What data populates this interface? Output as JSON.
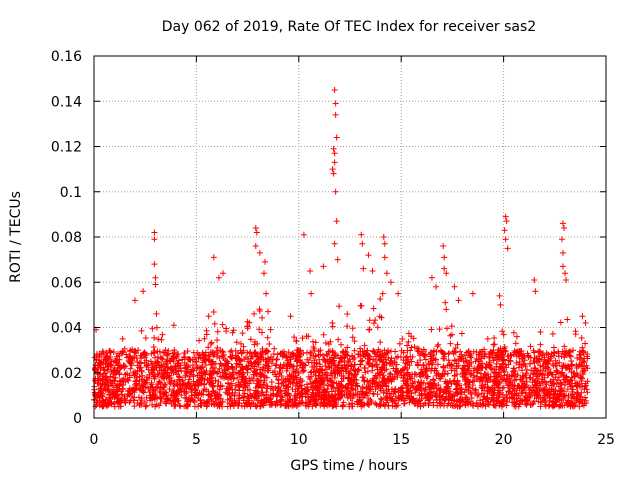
{
  "chart_data": {
    "type": "scatter",
    "title": "Day 062 of 2019, Rate Of TEC Index for receiver sas2",
    "xlabel": "GPS time / hours",
    "ylabel": "ROTI / TECUs",
    "xlim": [
      0,
      25
    ],
    "ylim": [
      0,
      0.16
    ],
    "xticks": [
      0,
      5,
      10,
      15,
      20,
      25
    ],
    "xtick_labels": [
      "0",
      "5",
      "10",
      "15",
      "20",
      "25"
    ],
    "yticks": [
      0,
      0.02,
      0.04,
      0.06,
      0.08,
      0.1,
      0.12,
      0.14,
      0.16
    ],
    "ytick_labels": [
      "0",
      "0.02",
      "0.04",
      "0.06",
      "0.08",
      "0.1",
      "0.12",
      "0.14",
      "0.16"
    ],
    "grid": true,
    "marker": "+",
    "marker_color": "#ff0000",
    "time_span_hours": [
      0,
      24.1
    ],
    "background_band": {
      "low": 0.005,
      "high": 0.03
    },
    "series": [
      {
        "name": "sas2",
        "notable_points": [
          {
            "x": 0.1,
            "y": 0.039
          },
          {
            "x": 1.4,
            "y": 0.035
          },
          {
            "x": 2.0,
            "y": 0.052
          },
          {
            "x": 2.4,
            "y": 0.056
          },
          {
            "x": 2.95,
            "y": 0.082
          },
          {
            "x": 2.95,
            "y": 0.079
          },
          {
            "x": 2.95,
            "y": 0.068
          },
          {
            "x": 3.0,
            "y": 0.062
          },
          {
            "x": 3.0,
            "y": 0.059
          },
          {
            "x": 3.05,
            "y": 0.046
          },
          {
            "x": 3.9,
            "y": 0.041
          },
          {
            "x": 5.6,
            "y": 0.045
          },
          {
            "x": 5.85,
            "y": 0.071
          },
          {
            "x": 6.1,
            "y": 0.062
          },
          {
            "x": 6.3,
            "y": 0.064
          },
          {
            "x": 7.9,
            "y": 0.084
          },
          {
            "x": 7.95,
            "y": 0.082
          },
          {
            "x": 7.9,
            "y": 0.076
          },
          {
            "x": 8.1,
            "y": 0.073
          },
          {
            "x": 8.35,
            "y": 0.069
          },
          {
            "x": 8.3,
            "y": 0.064
          },
          {
            "x": 8.4,
            "y": 0.055
          },
          {
            "x": 8.5,
            "y": 0.047
          },
          {
            "x": 9.6,
            "y": 0.045
          },
          {
            "x": 10.25,
            "y": 0.081
          },
          {
            "x": 10.55,
            "y": 0.065
          },
          {
            "x": 10.6,
            "y": 0.055
          },
          {
            "x": 11.2,
            "y": 0.067
          },
          {
            "x": 11.75,
            "y": 0.145
          },
          {
            "x": 11.8,
            "y": 0.139
          },
          {
            "x": 11.8,
            "y": 0.134
          },
          {
            "x": 11.85,
            "y": 0.124
          },
          {
            "x": 11.7,
            "y": 0.119
          },
          {
            "x": 11.75,
            "y": 0.117
          },
          {
            "x": 11.75,
            "y": 0.113
          },
          {
            "x": 11.65,
            "y": 0.11
          },
          {
            "x": 11.7,
            "y": 0.108
          },
          {
            "x": 11.8,
            "y": 0.1
          },
          {
            "x": 11.85,
            "y": 0.087
          },
          {
            "x": 11.75,
            "y": 0.077
          },
          {
            "x": 11.9,
            "y": 0.07
          },
          {
            "x": 13.05,
            "y": 0.081
          },
          {
            "x": 13.1,
            "y": 0.077
          },
          {
            "x": 13.15,
            "y": 0.066
          },
          {
            "x": 13.4,
            "y": 0.072
          },
          {
            "x": 13.6,
            "y": 0.065
          },
          {
            "x": 14.15,
            "y": 0.08
          },
          {
            "x": 14.2,
            "y": 0.077
          },
          {
            "x": 14.2,
            "y": 0.071
          },
          {
            "x": 14.3,
            "y": 0.064
          },
          {
            "x": 14.1,
            "y": 0.055
          },
          {
            "x": 14.5,
            "y": 0.06
          },
          {
            "x": 14.85,
            "y": 0.055
          },
          {
            "x": 16.5,
            "y": 0.062
          },
          {
            "x": 16.7,
            "y": 0.058
          },
          {
            "x": 17.05,
            "y": 0.076
          },
          {
            "x": 17.1,
            "y": 0.071
          },
          {
            "x": 17.1,
            "y": 0.066
          },
          {
            "x": 17.2,
            "y": 0.064
          },
          {
            "x": 17.15,
            "y": 0.051
          },
          {
            "x": 17.2,
            "y": 0.048
          },
          {
            "x": 17.6,
            "y": 0.058
          },
          {
            "x": 17.8,
            "y": 0.052
          },
          {
            "x": 18.5,
            "y": 0.055
          },
          {
            "x": 19.8,
            "y": 0.054
          },
          {
            "x": 19.85,
            "y": 0.05
          },
          {
            "x": 20.1,
            "y": 0.089
          },
          {
            "x": 20.15,
            "y": 0.087
          },
          {
            "x": 20.05,
            "y": 0.083
          },
          {
            "x": 20.1,
            "y": 0.079
          },
          {
            "x": 20.2,
            "y": 0.075
          },
          {
            "x": 21.5,
            "y": 0.061
          },
          {
            "x": 21.55,
            "y": 0.056
          },
          {
            "x": 21.8,
            "y": 0.038
          },
          {
            "x": 22.9,
            "y": 0.086
          },
          {
            "x": 22.95,
            "y": 0.084
          },
          {
            "x": 22.85,
            "y": 0.079
          },
          {
            "x": 22.9,
            "y": 0.073
          },
          {
            "x": 22.9,
            "y": 0.067
          },
          {
            "x": 23.0,
            "y": 0.064
          },
          {
            "x": 23.05,
            "y": 0.061
          },
          {
            "x": 23.85,
            "y": 0.045
          },
          {
            "x": 24.0,
            "y": 0.042
          }
        ],
        "activity_envelope": [
          {
            "x": 0.0,
            "y": 0.03
          },
          {
            "x": 1.0,
            "y": 0.028
          },
          {
            "x": 2.0,
            "y": 0.035
          },
          {
            "x": 2.8,
            "y": 0.045
          },
          {
            "x": 3.5,
            "y": 0.036
          },
          {
            "x": 4.5,
            "y": 0.03
          },
          {
            "x": 5.5,
            "y": 0.04
          },
          {
            "x": 6.2,
            "y": 0.058
          },
          {
            "x": 7.0,
            "y": 0.036
          },
          {
            "x": 8.0,
            "y": 0.05
          },
          {
            "x": 9.0,
            "y": 0.034
          },
          {
            "x": 10.0,
            "y": 0.038
          },
          {
            "x": 11.0,
            "y": 0.042
          },
          {
            "x": 12.0,
            "y": 0.05
          },
          {
            "x": 13.0,
            "y": 0.055
          },
          {
            "x": 14.0,
            "y": 0.058
          },
          {
            "x": 15.0,
            "y": 0.04
          },
          {
            "x": 16.0,
            "y": 0.036
          },
          {
            "x": 17.0,
            "y": 0.045
          },
          {
            "x": 18.0,
            "y": 0.038
          },
          {
            "x": 19.0,
            "y": 0.034
          },
          {
            "x": 20.0,
            "y": 0.045
          },
          {
            "x": 21.0,
            "y": 0.032
          },
          {
            "x": 22.0,
            "y": 0.034
          },
          {
            "x": 23.0,
            "y": 0.045
          },
          {
            "x": 24.0,
            "y": 0.035
          }
        ]
      }
    ]
  }
}
